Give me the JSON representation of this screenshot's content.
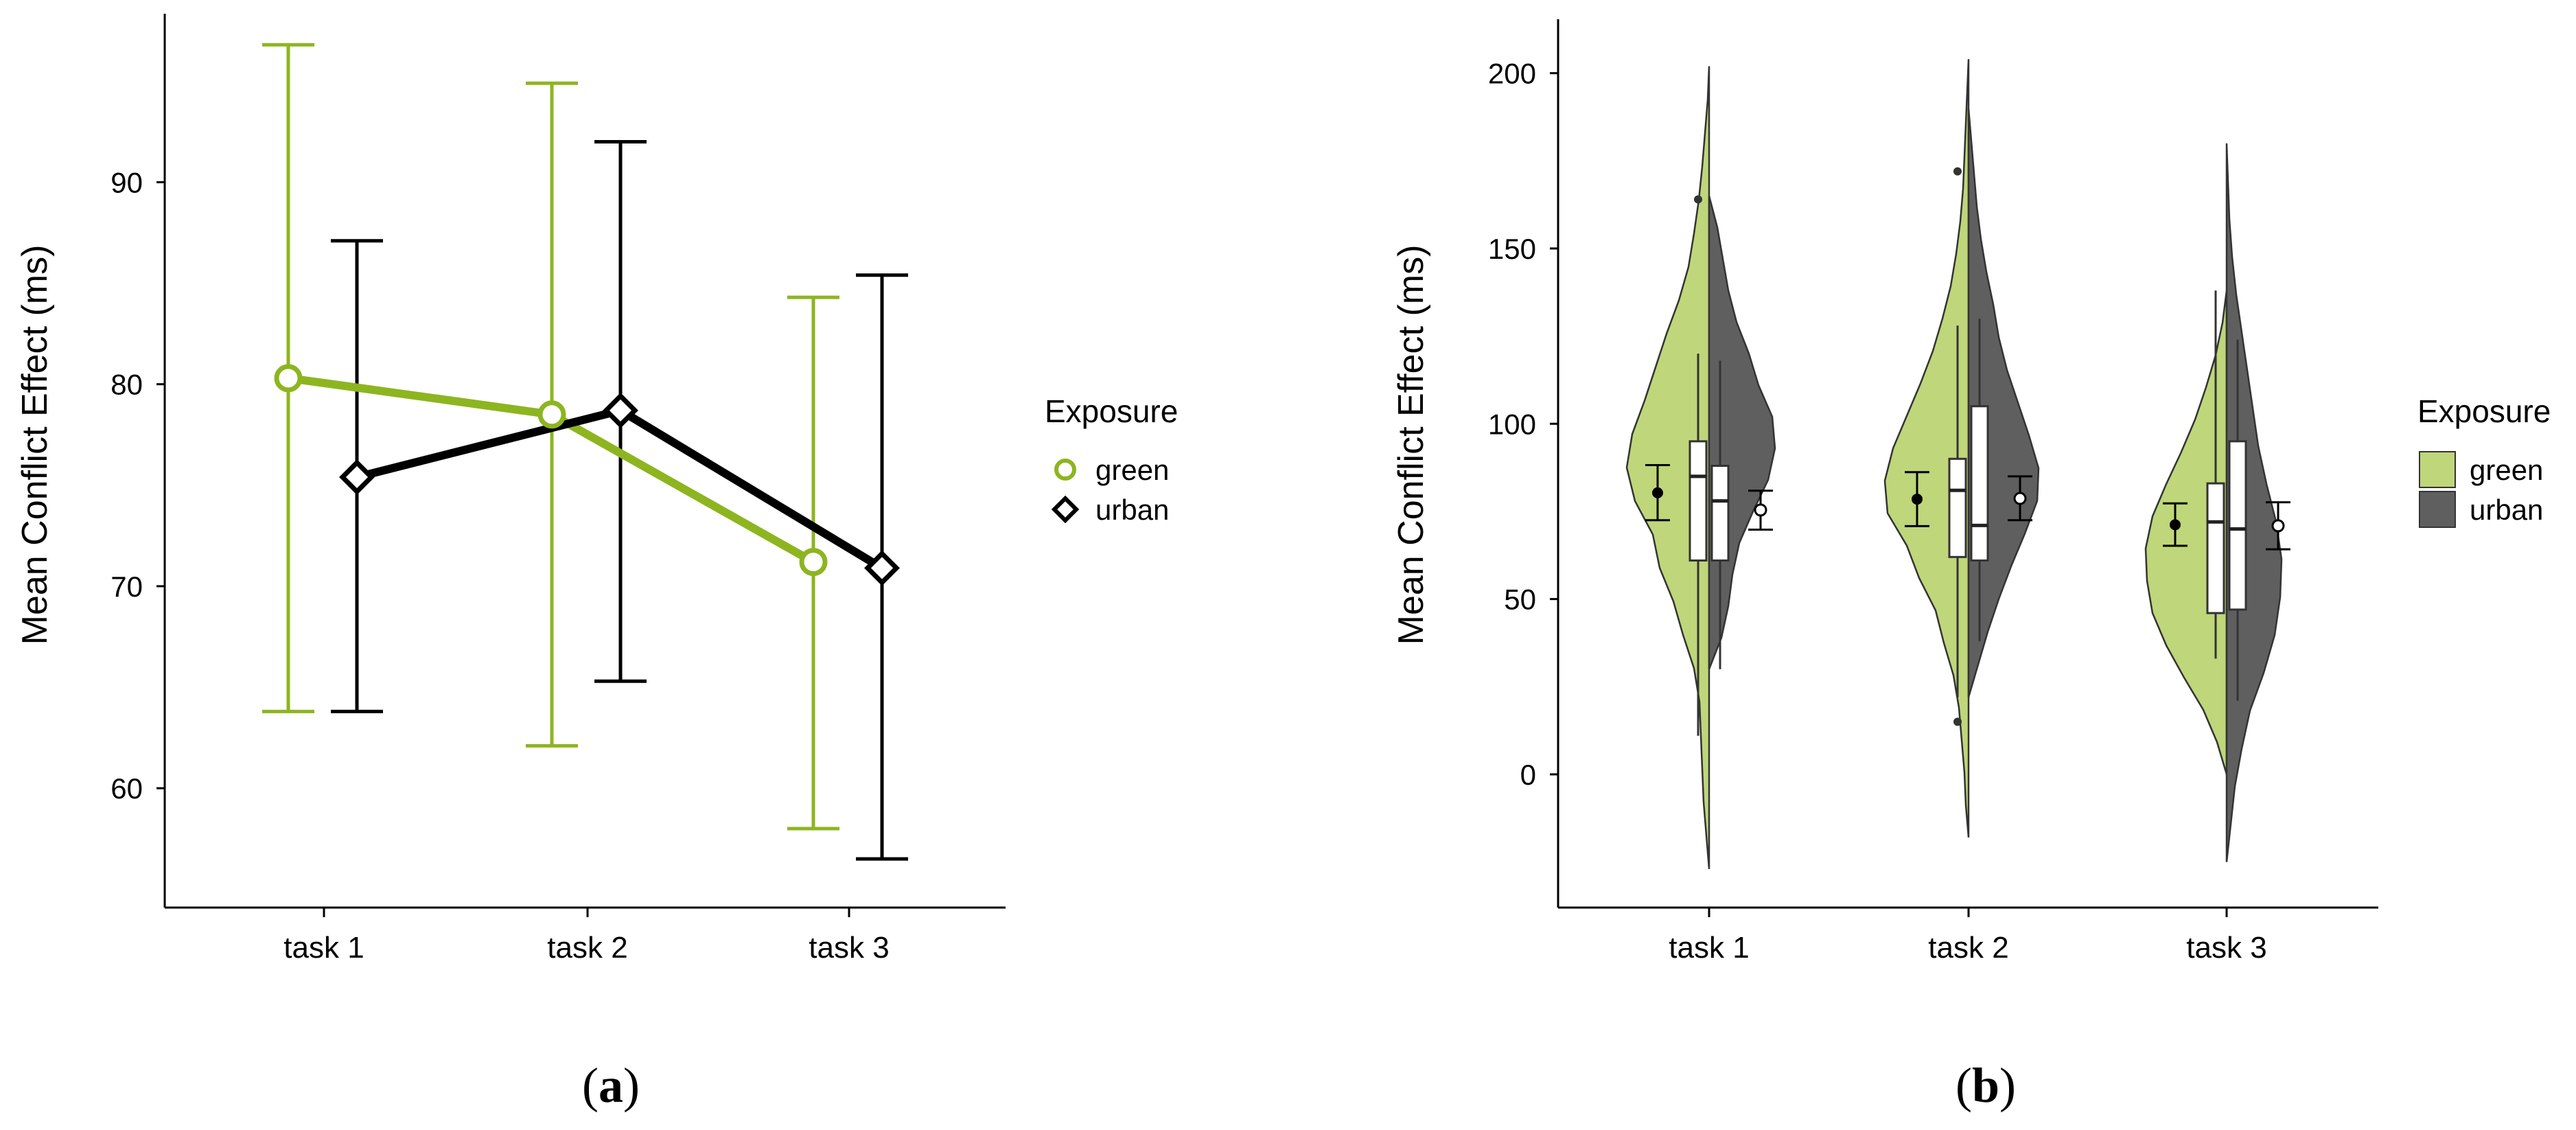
{
  "colors": {
    "green_line": "#8db520",
    "green_fill": "#bfd67a",
    "urban_line": "#000000",
    "urban_fill": "#5f5f5f"
  },
  "chart_data": [
    {
      "panel": "(a)",
      "panel_label": {
        "open": "(",
        "letter": "a",
        "close": ")"
      },
      "type": "line",
      "ylabel": "Mean Conflict Effect (ms)",
      "xlabel": "",
      "categories": [
        "task 1",
        "task 2",
        "task 3"
      ],
      "ylim": [
        54.5,
        98
      ],
      "yticks": [
        60,
        70,
        80,
        90
      ],
      "grid": false,
      "legend": {
        "title": "Exposure",
        "position": "right",
        "entries": [
          "green",
          "urban"
        ]
      },
      "series": [
        {
          "name": "green",
          "marker": "circle",
          "means": [
            80.3,
            78.5,
            71.2
          ],
          "lower": [
            63.8,
            62.1,
            58.0
          ],
          "upper": [
            96.8,
            94.9,
            84.3
          ]
        },
        {
          "name": "urban",
          "marker": "diamond",
          "means": [
            75.4,
            78.7,
            70.9
          ],
          "lower": [
            63.8,
            65.3,
            56.5
          ],
          "upper": [
            87.1,
            92.0,
            85.4
          ]
        }
      ]
    },
    {
      "panel": "(b)",
      "panel_label": {
        "open": "(",
        "letter": "b",
        "close": ")"
      },
      "type": "violin",
      "ylabel": "Mean Conflict Effect (ms)",
      "xlabel": "",
      "categories": [
        "task 1",
        "task 2",
        "task 3"
      ],
      "ylim": [
        -38,
        215
      ],
      "yticks": [
        0,
        50,
        100,
        150,
        200
      ],
      "grid": false,
      "legend": {
        "title": "Exposure",
        "position": "right",
        "entries": [
          "green",
          "urban"
        ]
      },
      "series": [
        {
          "name": "green",
          "groups": [
            {
              "violin_range": [
                -27,
                202
              ],
              "box": {
                "q1": 61,
                "median": 85,
                "q3": 95,
                "whisker_low": 11,
                "whisker_high": 120
              },
              "outliers": [
                164
              ],
              "mean": 80.3,
              "ci": [
                72.5,
                88.2
              ]
            },
            {
              "violin_range": [
                -18,
                204
              ],
              "box": {
                "q1": 62,
                "median": 81,
                "q3": 90,
                "whisker_low": 22,
                "whisker_high": 128
              },
              "outliers": [
                172,
                15
              ],
              "mean": 78.5,
              "ci": [
                70.8,
                86.2
              ]
            },
            {
              "violin_range": [
                0,
                138
              ],
              "box": {
                "q1": 46,
                "median": 72,
                "q3": 83,
                "whisker_low": 33,
                "whisker_high": 138
              },
              "outliers": [],
              "mean": 71.2,
              "ci": [
                65.2,
                77.3
              ]
            }
          ]
        },
        {
          "name": "urban",
          "groups": [
            {
              "violin_range": [
                30,
                165
              ],
              "box": {
                "q1": 61,
                "median": 78,
                "q3": 88,
                "whisker_low": 30,
                "whisker_high": 118
              },
              "outliers": [],
              "mean": 75.4,
              "ci": [
                69.8,
                80.9
              ]
            },
            {
              "violin_range": [
                22,
                190
              ],
              "box": {
                "q1": 61,
                "median": 71,
                "q3": 105,
                "whisker_low": 38,
                "whisker_high": 130
              },
              "outliers": [],
              "mean": 78.7,
              "ci": [
                72.5,
                85.0
              ]
            },
            {
              "violin_range": [
                -25,
                180
              ],
              "box": {
                "q1": 47,
                "median": 70,
                "q3": 95,
                "whisker_low": 21,
                "whisker_high": 124
              },
              "outliers": [],
              "mean": 70.9,
              "ci": [
                64.2,
                77.6
              ]
            }
          ]
        }
      ]
    }
  ]
}
